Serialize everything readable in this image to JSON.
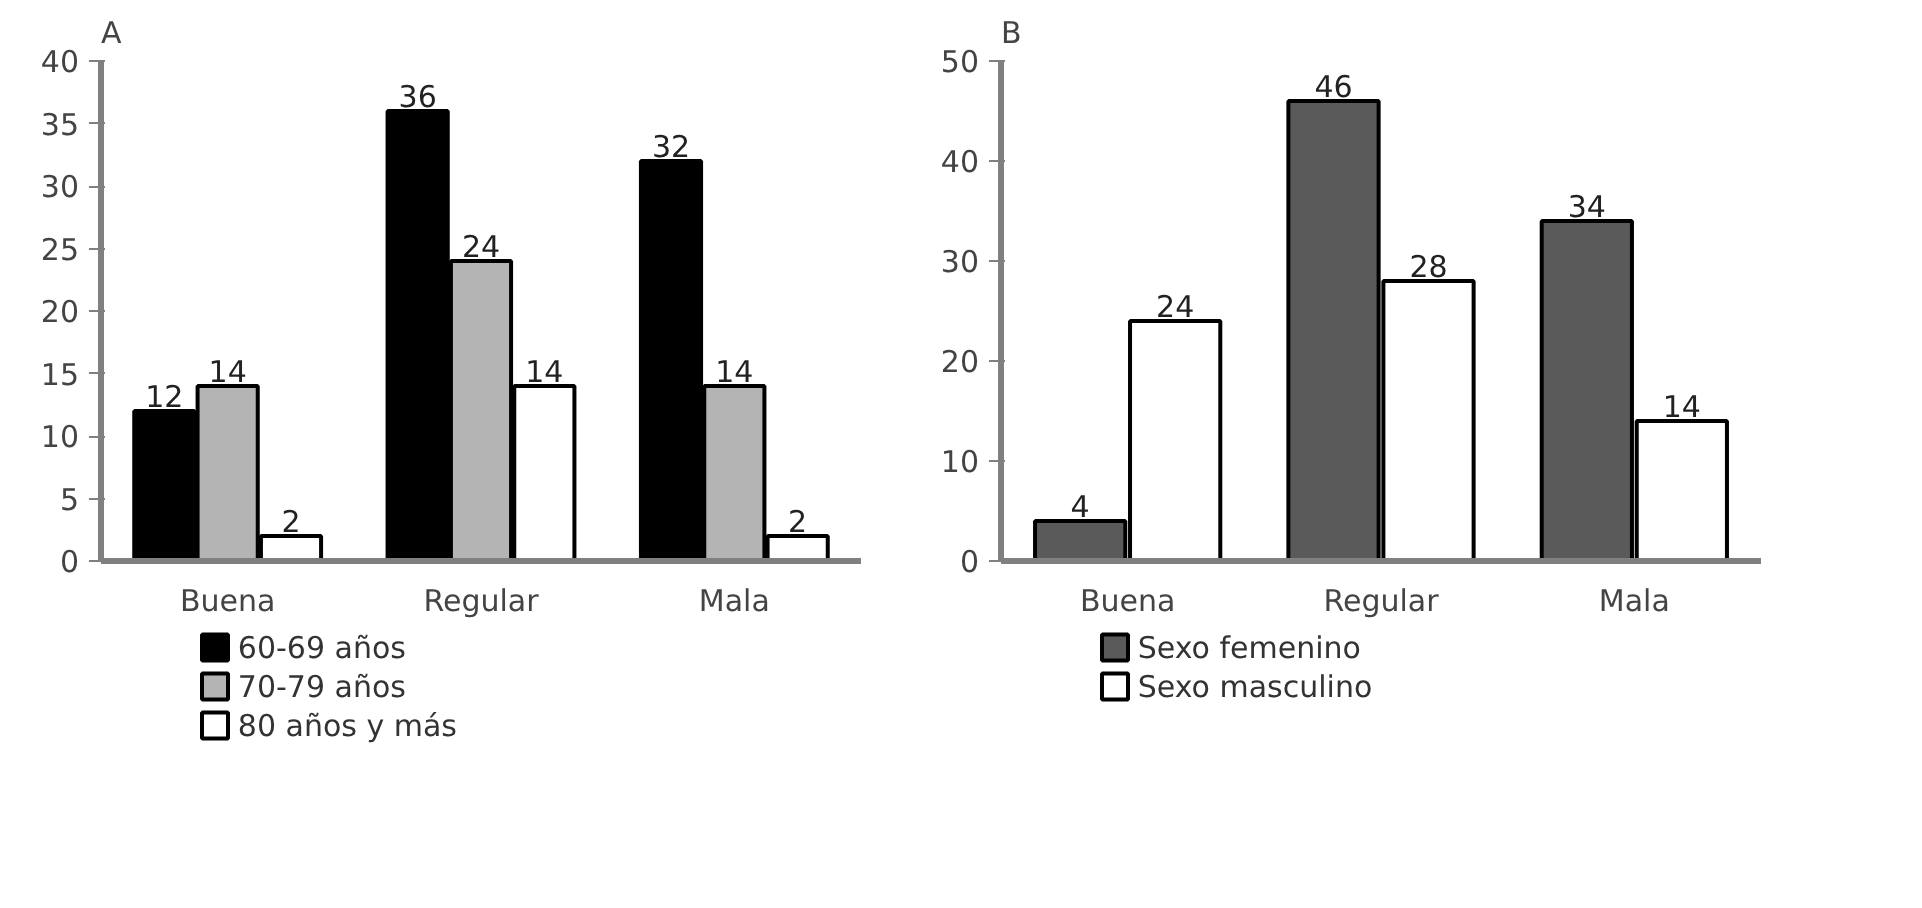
{
  "chart_data": [
    {
      "type": "bar",
      "title": "A",
      "categories": [
        "Buena",
        "Regular",
        "Mala"
      ],
      "ylim": [
        0,
        40
      ],
      "yticks": [
        0,
        5,
        10,
        15,
        20,
        25,
        30,
        35,
        40
      ],
      "data_labels": true,
      "legend": "bottom",
      "series": [
        {
          "name": "60-69 años",
          "color": "#000000",
          "values": [
            12,
            36,
            32
          ]
        },
        {
          "name": "70-79 años",
          "color": "#b4b4b4",
          "values": [
            14,
            24,
            14
          ]
        },
        {
          "name": "80 años y más",
          "color": "#ffffff",
          "values": [
            2,
            14,
            2
          ]
        }
      ]
    },
    {
      "type": "bar",
      "title": "B",
      "categories": [
        "Buena",
        "Regular",
        "Mala"
      ],
      "ylim": [
        0,
        50
      ],
      "yticks": [
        0,
        10,
        20,
        30,
        40,
        50
      ],
      "data_labels": true,
      "legend": "bottom",
      "series": [
        {
          "name": "Sexo femenino",
          "color": "#5a5a5a",
          "values": [
            4,
            46,
            34
          ]
        },
        {
          "name": "Sexo masculino",
          "color": "#ffffff",
          "values": [
            24,
            28,
            14
          ]
        }
      ]
    }
  ]
}
